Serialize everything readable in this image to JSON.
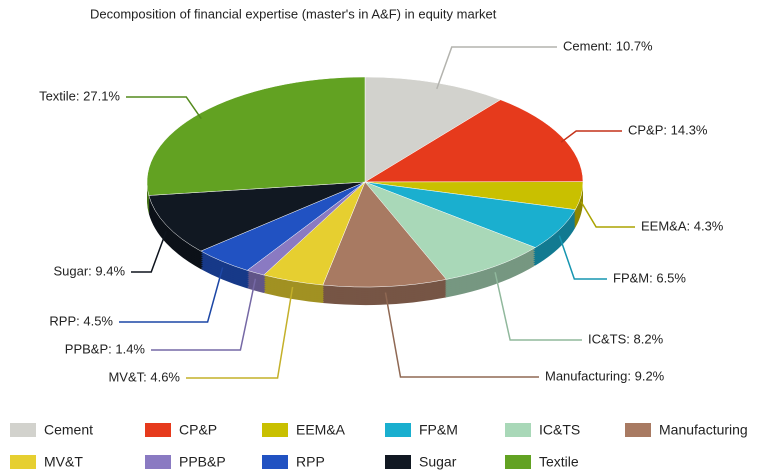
{
  "chart_data": {
    "type": "pie",
    "title": "Decomposition of financial expertise (master's in A&F) in equity market",
    "categories": [
      "Cement",
      "CP&P",
      "EEM&A",
      "FP&M",
      "IC&TS",
      "Manufacturing",
      "MV&T",
      "PPB&P",
      "RPP",
      "Sugar",
      "Textile"
    ],
    "values": [
      10.7,
      14.3,
      4.3,
      6.5,
      8.2,
      9.2,
      4.6,
      1.4,
      4.5,
      9.4,
      27.1
    ],
    "value_labels": [
      "Cement: 10.7%",
      "CP&P: 14.3%",
      "EEM&A: 4.3%",
      "FP&M: 6.5%",
      "IC&TS: 8.2%",
      "Manufacturing: 9.2%",
      "MV&T: 4.6%",
      "PPB&P: 1.4%",
      "RPP: 4.5%",
      "Sugar: 9.4%",
      "Textile: 27.1%"
    ],
    "colors": [
      "#d2d2cd",
      "#e63a1c",
      "#c9c000",
      "#1aafcf",
      "#a9d8b8",
      "#a87a62",
      "#e6cf30",
      "#8a7ac2",
      "#2152c2",
      "#111822",
      "#62a222"
    ],
    "legend": "bottom"
  }
}
